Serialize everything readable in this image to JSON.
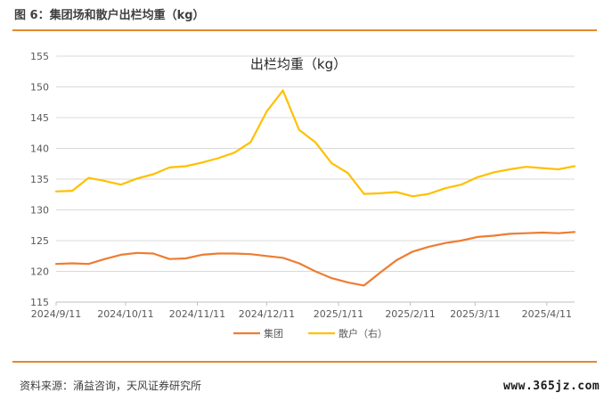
{
  "figure": {
    "title": "图 6：集团场和散户出栏均重（kg）",
    "source": "资料来源：涌益咨询，天风证券研究所",
    "watermark": "www.365jz.com"
  },
  "colors": {
    "accent_rule": "#e08a2f",
    "series_group": "#ed7d31",
    "series_retail": "#ffc000"
  },
  "chart_data": {
    "type": "line",
    "title": "出栏均重（kg）",
    "xlabel": "",
    "ylabel": "",
    "ylim": [
      115,
      155
    ],
    "yticks": [
      115,
      120,
      125,
      130,
      135,
      140,
      145,
      150,
      155
    ],
    "x_ticks": [
      "2024/9/11",
      "2024/10/11",
      "2024/11/11",
      "2024/12/11",
      "2025/1/11",
      "2025/2/11",
      "2025/3/11",
      "2025/4/11"
    ],
    "legend_position": "bottom",
    "grid": true,
    "x": [
      "2024/9/11",
      "2024/9/18",
      "2024/9/25",
      "2024/10/2",
      "2024/10/9",
      "2024/10/16",
      "2024/10/23",
      "2024/10/30",
      "2024/11/6",
      "2024/11/13",
      "2024/11/20",
      "2024/11/27",
      "2024/12/4",
      "2024/12/11",
      "2024/12/18",
      "2024/12/25",
      "2025/1/1",
      "2025/1/8",
      "2025/1/15",
      "2025/1/22",
      "2025/1/29",
      "2025/2/5",
      "2025/2/12",
      "2025/2/19",
      "2025/2/26",
      "2025/3/5",
      "2025/3/12",
      "2025/3/19",
      "2025/3/26",
      "2025/4/2",
      "2025/4/9",
      "2025/4/16",
      "2025/4/23"
    ],
    "series": [
      {
        "name": "集团",
        "values": [
          121.2,
          121.3,
          121.2,
          122.0,
          122.7,
          123.0,
          122.9,
          122.0,
          122.1,
          122.7,
          122.9,
          122.9,
          122.8,
          122.5,
          122.2,
          121.3,
          120.0,
          118.9,
          118.2,
          117.7,
          119.8,
          121.8,
          123.2,
          124.0,
          124.6,
          125.0,
          125.6,
          125.8,
          126.1,
          126.2,
          126.3,
          126.2,
          126.4
        ],
        "axis": "left"
      },
      {
        "name": "散户（右）",
        "values": [
          133.0,
          133.1,
          135.2,
          134.7,
          134.1,
          135.1,
          135.8,
          136.9,
          137.1,
          137.7,
          138.4,
          139.3,
          141.0,
          146.0,
          149.4,
          143.0,
          141.0,
          137.6,
          136.0,
          132.6,
          132.7,
          132.9,
          132.2,
          132.6,
          133.5,
          134.1,
          135.3,
          136.1,
          136.6,
          137.0,
          136.8,
          136.6,
          137.1
        ],
        "axis": "right"
      }
    ]
  }
}
